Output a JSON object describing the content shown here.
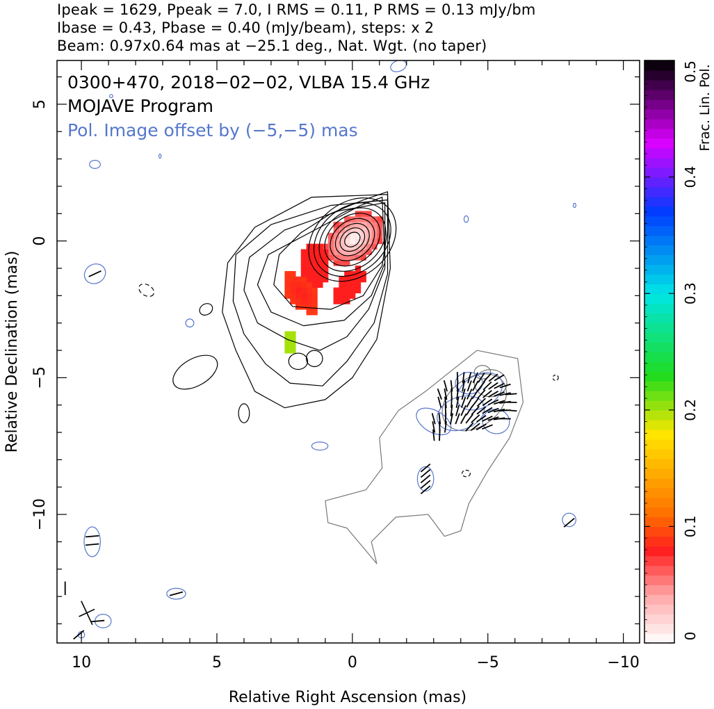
{
  "header": {
    "line1": "Ipeak = 1629, Ppeak = 7.0, I RMS = 0.11, P RMS = 0.13 mJy/bm",
    "line2": "Ibase = 0.43, Pbase = 0.40 (mJy/beam), steps: x 2",
    "line3": "Beam: 0.97x0.64 mas at −25.1 deg., Nat. Wgt. (no taper)"
  },
  "annotations": {
    "source": "0300+470, 2018−02−02, VLBA 15.4 GHz",
    "program": "MOJAVE Program",
    "pol_offset": "Pol. Image offset by (−5,−5) mas"
  },
  "colors": {
    "stokes_i_contour": "#000000",
    "pol_contour": "#5577cc",
    "offset_i_contour": "#777777",
    "evpa_ticks": "#000000"
  },
  "chart_data": {
    "type": "heatmap",
    "title": "",
    "xlabel": "Relative Right Ascension (mas)",
    "ylabel": "Relative Declination (mas)",
    "xlim": [
      10.9,
      -10.6
    ],
    "ylim": [
      -14.7,
      6.6
    ],
    "x_ticks": [
      10,
      5,
      0,
      -5,
      -10
    ],
    "x_tick_labels": [
      "10",
      "5",
      "0",
      "−5",
      "−10"
    ],
    "y_ticks": [
      5,
      0,
      -5,
      -10
    ],
    "y_tick_labels": [
      "5",
      "0",
      "−5",
      "−10"
    ],
    "colorbar": {
      "label": "Frac. Lin. Pol.",
      "range": [
        0,
        0.5
      ],
      "ticks": [
        0,
        0.1,
        0.2,
        0.3,
        0.4,
        0.5
      ],
      "tick_labels": [
        "0",
        "0.1",
        "0.2",
        "0.3",
        "0.4",
        "0.5"
      ]
    },
    "core": {
      "x": 0,
      "y": 0
    },
    "beam": {
      "major_mas": 0.97,
      "minor_mas": 0.64,
      "pa_deg": -25.1
    },
    "pol_offset_mas": [
      -5,
      -5
    ]
  }
}
